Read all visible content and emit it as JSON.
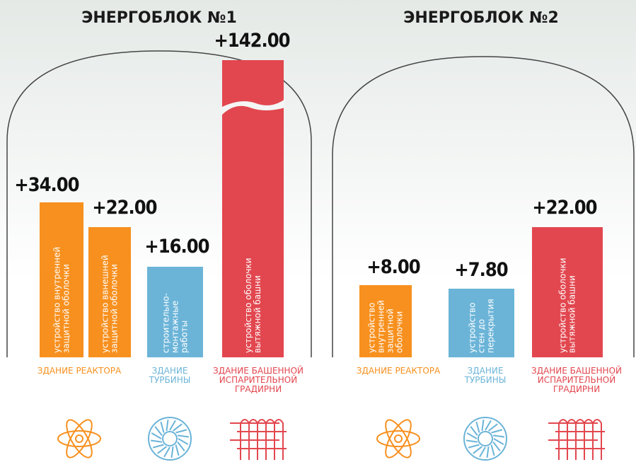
{
  "blocks": [
    {
      "title": "ЭНЕРГОБЛОК №1",
      "bars": [
        {
          "value": "+34.00",
          "label": [
            "устройство внутренней",
            "защитной оболочки"
          ]
        },
        {
          "value": "+22.00",
          "label": [
            "устройство ввнешней",
            "защитной оболочки"
          ]
        },
        {
          "value": "+16.00",
          "label": [
            "строительно-",
            "монтажные",
            "работы"
          ]
        },
        {
          "value": "+142.00",
          "label": [
            "устройство оболочки",
            "вытяжной башни"
          ]
        }
      ],
      "groups": [
        {
          "label": [
            "ЗДАНИЕ РЕАКТОРА"
          ]
        },
        {
          "label": [
            "ЗДАНИЕ",
            "ТУРБИНЫ"
          ]
        },
        {
          "label": [
            "ЗДАНИЕ БАШЕННОЙ",
            "ИСПАРИТЕЛЬНОЙ",
            "ГРАДИРНИ"
          ]
        }
      ]
    },
    {
      "title": "ЭНЕРГОБЛОК №2",
      "bars": [
        {
          "value": "+8.00",
          "label": [
            "устройство",
            "внутренней",
            "защитной",
            "оболочки"
          ]
        },
        {
          "value": "+7.80",
          "label": [
            "устройство",
            "стен до",
            "перекрытия"
          ]
        },
        {
          "value": "+22.00",
          "label": [
            "устройство оболочки",
            "вытяжной башни"
          ]
        }
      ],
      "groups": [
        {
          "label": [
            "ЗДАНИЕ РЕАКТОРА"
          ]
        },
        {
          "label": [
            "ЗДАНИЕ",
            "ТУРБИНЫ"
          ]
        },
        {
          "label": [
            "ЗДАНИЕ БАШЕННОЙ",
            "ИСПАРИТЕЛЬНОЙ",
            "ГРАДИРНИ"
          ]
        }
      ]
    }
  ]
}
